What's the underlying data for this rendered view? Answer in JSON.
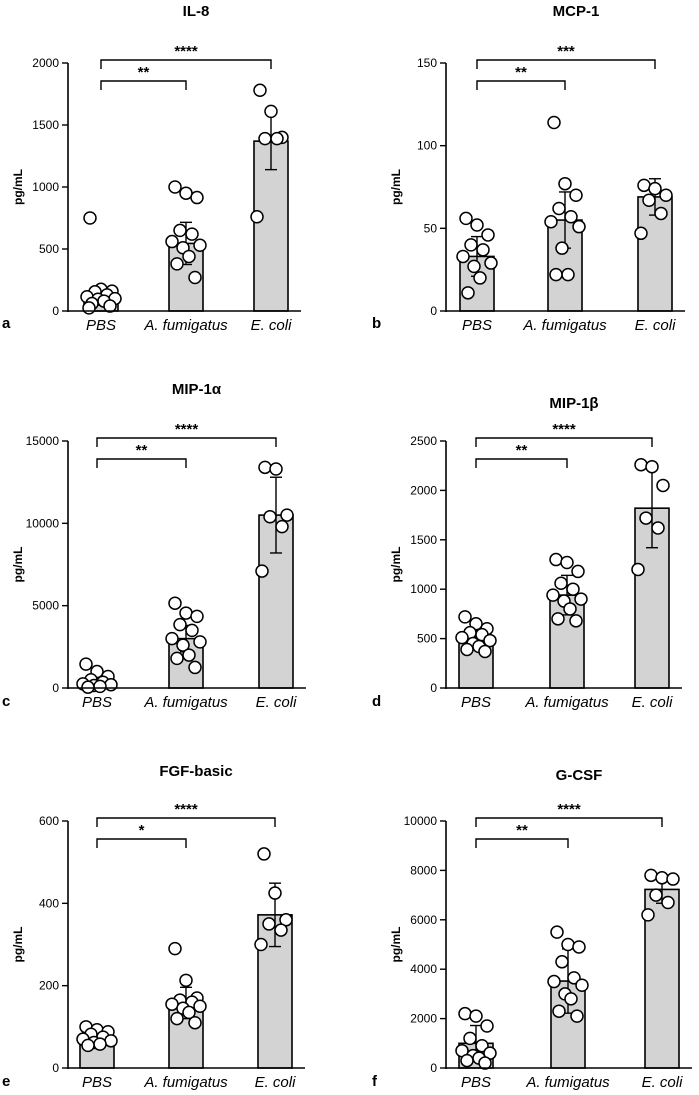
{
  "panel_colors": {
    "bar_fill": "#d3d3d3",
    "stroke": "#000000",
    "point_fill": "#ffffff"
  },
  "chart_data": [
    {
      "type": "bar",
      "panel_label": "a",
      "title": "IL-8",
      "ylabel": "pg/mL",
      "categories": [
        "PBS",
        "A. fumigatus",
        "E. coli"
      ],
      "ylim": [
        0,
        2000
      ],
      "yticks": [
        0,
        500,
        1000,
        1500,
        2000
      ],
      "values": [
        130,
        545,
        1370
      ],
      "errors": [
        45,
        170,
        230
      ],
      "points": [
        [
          750,
          175,
          160,
          155,
          130,
          115,
          100,
          95,
          80,
          60,
          40,
          25
        ],
        [
          1000,
          950,
          915,
          650,
          620,
          560,
          530,
          510,
          440,
          380,
          270
        ],
        [
          1780,
          1610,
          1400,
          1390,
          1390,
          760
        ]
      ],
      "significance": [
        {
          "from": 0,
          "to": 1,
          "label": "**"
        },
        {
          "from": 0,
          "to": 2,
          "label": "****"
        }
      ]
    },
    {
      "type": "bar",
      "panel_label": "b",
      "title": "MCP-1",
      "ylabel": "pg/mL",
      "categories": [
        "PBS",
        "A. fumigatus",
        "E. coli"
      ],
      "ylim": [
        0,
        150
      ],
      "yticks": [
        0,
        50,
        100,
        150
      ],
      "values": [
        33,
        55,
        69
      ],
      "errors": [
        12,
        17,
        11
      ],
      "points": [
        [
          56,
          52,
          46,
          40,
          37,
          33,
          29,
          27,
          20,
          11
        ],
        [
          114,
          77,
          70,
          62,
          57,
          54,
          51,
          38,
          22,
          22
        ],
        [
          76,
          74,
          70,
          67,
          59,
          47
        ]
      ],
      "significance": [
        {
          "from": 0,
          "to": 1,
          "label": "**"
        },
        {
          "from": 0,
          "to": 2,
          "label": "***"
        }
      ]
    },
    {
      "type": "bar",
      "panel_label": "c",
      "title": "MIP-1α",
      "ylabel": "pg/mL",
      "categories": [
        "PBS",
        "A. fumigatus",
        "E. coli"
      ],
      "ylim": [
        0,
        15000
      ],
      "yticks": [
        0,
        5000,
        10000,
        15000
      ],
      "values": [
        500,
        3000,
        10500
      ],
      "errors": [
        450,
        800,
        2300
      ],
      "points": [
        [
          1450,
          1000,
          700,
          500,
          350,
          250,
          200,
          150,
          100,
          50
        ],
        [
          5150,
          4550,
          4350,
          3850,
          3500,
          3000,
          2800,
          2600,
          2000,
          1800,
          1250
        ],
        [
          13400,
          13300,
          10500,
          10400,
          9800,
          7100
        ]
      ],
      "significance": [
        {
          "from": 0,
          "to": 1,
          "label": "**"
        },
        {
          "from": 0,
          "to": 2,
          "label": "****"
        }
      ]
    },
    {
      "type": "bar",
      "panel_label": "d",
      "title": "MIP-1β",
      "ylabel": "pg/mL",
      "categories": [
        "PBS",
        "A. fumigatus",
        "E. coli"
      ],
      "ylim": [
        0,
        2500
      ],
      "yticks": [
        0,
        500,
        1000,
        1500,
        2000,
        2500
      ],
      "values": [
        520,
        940,
        1820
      ],
      "errors": [
        130,
        200,
        400
      ],
      "points": [
        [
          720,
          650,
          600,
          560,
          540,
          510,
          480,
          450,
          420,
          390,
          370
        ],
        [
          1300,
          1270,
          1180,
          1060,
          1000,
          940,
          900,
          880,
          800,
          700,
          680
        ],
        [
          2260,
          2240,
          2050,
          1720,
          1620,
          1200
        ]
      ],
      "significance": [
        {
          "from": 0,
          "to": 1,
          "label": "**"
        },
        {
          "from": 0,
          "to": 2,
          "label": "****"
        }
      ]
    },
    {
      "type": "bar",
      "panel_label": "e",
      "title": "FGF-basic",
      "ylabel": "pg/mL",
      "categories": [
        "PBS",
        "A. fumigatus",
        "E. coli"
      ],
      "ylim": [
        0,
        600
      ],
      "yticks": [
        0,
        200,
        400,
        600
      ],
      "values": [
        70,
        158,
        372
      ],
      "errors": [
        17,
        38,
        77
      ],
      "points": [
        [
          100,
          93,
          88,
          82,
          75,
          70,
          66,
          62,
          58,
          55
        ],
        [
          290,
          213,
          170,
          165,
          160,
          155,
          150,
          145,
          135,
          120,
          110
        ],
        [
          520,
          425,
          360,
          350,
          335,
          300
        ]
      ],
      "significance": [
        {
          "from": 0,
          "to": 1,
          "label": "*"
        },
        {
          "from": 0,
          "to": 2,
          "label": "****"
        }
      ]
    },
    {
      "type": "bar",
      "panel_label": "f",
      "title": "G-CSF",
      "ylabel": "pg/mL",
      "categories": [
        "PBS",
        "A. fumigatus",
        "E. coli"
      ],
      "ylim": [
        0,
        10000
      ],
      "yticks": [
        0,
        2000,
        4000,
        6000,
        8000,
        10000
      ],
      "values": [
        1000,
        3520,
        7230
      ],
      "errors": [
        720,
        1300,
        560
      ],
      "points": [
        [
          2200,
          2100,
          1700,
          1200,
          900,
          700,
          600,
          500,
          400,
          300,
          200
        ],
        [
          5500,
          5000,
          4900,
          4300,
          3650,
          3500,
          3350,
          3000,
          2800,
          2300,
          2100
        ],
        [
          7800,
          7700,
          7650,
          7000,
          6700,
          6200
        ]
      ],
      "significance": [
        {
          "from": 0,
          "to": 1,
          "label": "**"
        },
        {
          "from": 0,
          "to": 2,
          "label": "****"
        }
      ]
    }
  ]
}
